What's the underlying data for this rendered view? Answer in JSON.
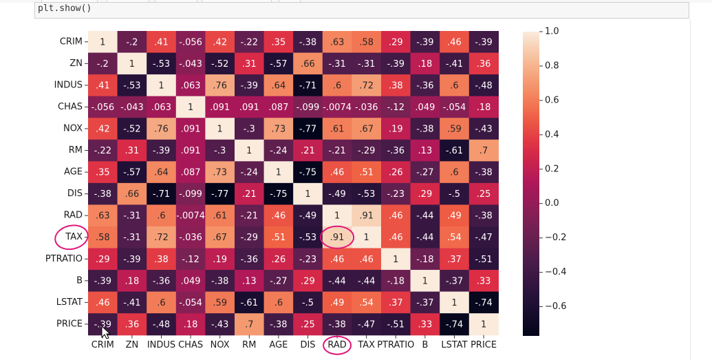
{
  "notebook": {
    "code_line": "plt.show()"
  },
  "chart_data": {
    "type": "heatmap",
    "title": "",
    "xlabel": "",
    "ylabel": "",
    "labels": [
      "CRIM",
      "ZN",
      "INDUS",
      "CHAS",
      "NOX",
      "RM",
      "AGE",
      "DIS",
      "RAD",
      "TAX",
      "PTRATIO",
      "B",
      "LSTAT",
      "PRICE"
    ],
    "matrix": [
      [
        1,
        -0.2,
        0.41,
        -0.056,
        0.42,
        -0.22,
        0.35,
        -0.38,
        0.63,
        0.58,
        0.29,
        -0.39,
        0.46,
        -0.39
      ],
      [
        -0.2,
        1,
        -0.53,
        -0.043,
        -0.52,
        0.31,
        -0.57,
        0.66,
        -0.31,
        -0.31,
        -0.39,
        0.18,
        -0.41,
        0.36
      ],
      [
        0.41,
        -0.53,
        1,
        0.063,
        0.76,
        -0.39,
        0.64,
        -0.71,
        0.6,
        0.72,
        0.38,
        -0.36,
        0.6,
        -0.48
      ],
      [
        -0.056,
        -0.043,
        0.063,
        1,
        0.091,
        0.091,
        0.087,
        -0.099,
        -0.0074,
        -0.036,
        -0.12,
        0.049,
        -0.054,
        0.18
      ],
      [
        0.42,
        -0.52,
        0.76,
        0.091,
        1,
        -0.3,
        0.73,
        -0.77,
        0.61,
        0.67,
        0.19,
        -0.38,
        0.59,
        -0.43
      ],
      [
        -0.22,
        0.31,
        -0.39,
        0.091,
        -0.3,
        1,
        -0.24,
        0.21,
        -0.21,
        -0.29,
        -0.36,
        0.13,
        -0.61,
        0.7
      ],
      [
        0.35,
        -0.57,
        0.64,
        0.087,
        0.73,
        -0.24,
        1,
        -0.75,
        0.46,
        0.51,
        0.26,
        -0.27,
        0.6,
        -0.38
      ],
      [
        -0.38,
        0.66,
        -0.71,
        -0.099,
        -0.77,
        0.21,
        -0.75,
        1,
        -0.49,
        -0.53,
        -0.23,
        0.29,
        -0.5,
        0.25
      ],
      [
        0.63,
        -0.31,
        0.6,
        -0.0074,
        0.61,
        -0.21,
        0.46,
        -0.49,
        1,
        0.91,
        0.46,
        -0.44,
        0.49,
        -0.38
      ],
      [
        0.58,
        -0.31,
        0.72,
        -0.036,
        0.67,
        -0.29,
        0.51,
        -0.53,
        0.91,
        1,
        0.46,
        -0.44,
        0.54,
        -0.47
      ],
      [
        0.29,
        -0.39,
        0.38,
        -0.12,
        0.19,
        -0.36,
        0.26,
        -0.23,
        0.46,
        0.46,
        1,
        -0.18,
        0.37,
        -0.51
      ],
      [
        -0.39,
        0.18,
        -0.36,
        0.049,
        -0.38,
        0.13,
        -0.27,
        0.29,
        -0.44,
        -0.44,
        -0.18,
        1,
        -0.37,
        0.33
      ],
      [
        0.46,
        -0.41,
        0.6,
        -0.054,
        0.59,
        -0.61,
        0.6,
        -0.5,
        0.49,
        0.54,
        0.37,
        -0.37,
        1,
        -0.74
      ],
      [
        -0.39,
        0.36,
        -0.48,
        0.18,
        -0.43,
        0.7,
        -0.38,
        0.25,
        -0.38,
        -0.47,
        -0.51,
        0.33,
        -0.74,
        1
      ]
    ],
    "colormap": "rocket",
    "vmin": -0.77,
    "vmax": 1.0,
    "colorbar_ticks": [
      1.0,
      0.8,
      0.6,
      0.4,
      0.2,
      0.0,
      -0.2,
      -0.4,
      -0.6
    ],
    "colorbar_tick_labels": [
      "1.0",
      "0.8",
      "0.6",
      "0.4",
      "0.2",
      "0.0",
      "−0.2",
      "−0.4",
      "−0.6"
    ],
    "annotations": "values shown in each cell",
    "highlighted": {
      "row_label": "TAX",
      "column_label": "RAD",
      "cell_value": "0.91"
    }
  }
}
